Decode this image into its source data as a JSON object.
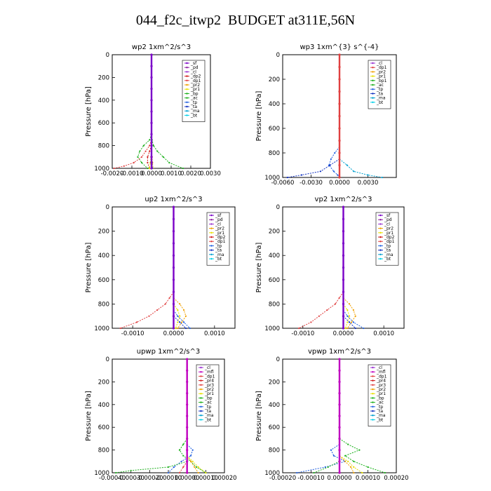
{
  "page_title": "044_f2c_itwp2  BUDGET at311E,56N",
  "colors": {
    "sf": "#7a00c8",
    "pd": "#8b1aa0",
    "cl": "#9a30d0",
    "dp2": "#d01818",
    "dp1": "#e04040",
    "pr2": "#f0a000",
    "pr1": "#e8e000",
    "bp": "#18b018",
    "bp1": "#18b018",
    "dp4": "#c01040",
    "pr4": "#d01818",
    "pr3": "#e04040",
    "mfl": "#c000c0",
    "ac": "#20b020",
    "tp": "#2060e0",
    "ta": "#1030c0",
    "ma": "#00a0d0",
    "bt": "#00d0e8"
  },
  "chart_data": [
    {
      "type": "line",
      "title": "wp2  1xm^2/s^3",
      "ylabel": "Pressure [hPa]",
      "xlim": [
        -0.002,
        0.003
      ],
      "ylim": [
        1000,
        0
      ],
      "xticks": [
        -0.002,
        -0.001,
        0,
        0.001,
        0.002,
        0.003
      ],
      "xtick_labels": [
        "-0.0020",
        "-0.0010",
        "0.0000",
        "0.0010",
        "0.0020",
        "0.0030"
      ],
      "yticks": [
        0,
        200,
        400,
        600,
        800,
        1000
      ],
      "ytick_labels": [
        "0",
        "200",
        "400",
        "600",
        "800",
        "1000"
      ],
      "legend": [
        "_sf",
        "_pd",
        "_cl",
        "_dp2",
        "_dp1",
        "_pr2",
        "_pr1",
        "_bp",
        "_ac",
        "_tp",
        "_ta",
        "_ma",
        "_bt"
      ],
      "legend_keys": [
        "sf",
        "pd",
        "cl",
        "dp2",
        "dp1",
        "pr2",
        "pr1",
        "bp",
        "ac",
        "tp",
        "ta",
        "ma",
        "bt"
      ],
      "legend_position": "top-right",
      "series": [
        {
          "key": "bp",
          "p": [
            700,
            750,
            800,
            850,
            900,
            950,
            1000
          ],
          "x": [
            0,
            3e-05,
            0.0001,
            0.0003,
            0.0006,
            0.0009,
            0.0016
          ]
        },
        {
          "key": "ac",
          "p": [
            700,
            750,
            800,
            850,
            900,
            950,
            1000
          ],
          "x": [
            0,
            -0.0001,
            -0.0004,
            -0.0006,
            -0.0007,
            -0.0005,
            -0.0002
          ]
        },
        {
          "key": "dp1",
          "p": [
            750,
            800,
            850,
            900,
            950,
            980,
            1000
          ],
          "x": [
            0,
            -0.0001,
            -0.0003,
            -0.0005,
            -0.0009,
            -0.0014,
            -0.0019
          ]
        },
        {
          "key": "dp2",
          "p": [
            800,
            850,
            900,
            950,
            1000
          ],
          "x": [
            0,
            -0.0001,
            -0.0002,
            -0.0002,
            -0.0001
          ]
        },
        {
          "key": "pr2",
          "p": [
            850,
            900,
            950,
            1000
          ],
          "x": [
            0,
            3e-05,
            5e-05,
            8e-05
          ]
        },
        {
          "key": "pr1",
          "p": [
            850,
            900,
            950,
            1000
          ],
          "x": [
            0,
            -3e-05,
            -6e-05,
            -0.0001
          ]
        },
        {
          "key": "tp",
          "p": [
            900,
            950,
            1000
          ],
          "x": [
            0,
            3e-05,
            5e-05
          ]
        },
        {
          "key": "sf",
          "p": [
            0,
            100,
            200,
            300,
            400,
            500,
            600,
            700,
            800,
            900,
            950,
            1000
          ],
          "x": [
            0,
            0,
            0,
            0,
            0,
            0,
            0,
            0,
            0,
            0,
            0,
            0
          ]
        }
      ]
    },
    {
      "type": "line",
      "title": "wp3  1xm^{3} s^{-4}",
      "ylabel": "Pressure [hPa]",
      "xlim": [
        -0.006,
        0.006
      ],
      "ylim": [
        1000,
        0
      ],
      "xticks": [
        -0.006,
        -0.003,
        0,
        0.003
      ],
      "xtick_labels": [
        "-0.0060",
        "-0.0030",
        "0.0000",
        "0.0030"
      ],
      "yticks": [
        0,
        200,
        400,
        600,
        800,
        1000
      ],
      "ytick_labels": [
        "0",
        "200",
        "400",
        "600",
        "800",
        "1000"
      ],
      "legend": [
        "_cl",
        "_dp1",
        "_pr2",
        "_pr1",
        "_bp1",
        "_ac",
        "_tp",
        "_ta",
        "_ma",
        "_bt"
      ],
      "legend_keys": [
        "cl",
        "dp1",
        "pr2",
        "pr1",
        "bp1",
        "ac",
        "tp",
        "ta",
        "ma",
        "bt"
      ],
      "legend_position": "top-right",
      "series": [
        {
          "key": "tp",
          "p": [
            750,
            800,
            850,
            900,
            950,
            980,
            1000
          ],
          "x": [
            0,
            -0.0005,
            -0.0009,
            -0.0011,
            -0.0006,
            -0.0002,
            0
          ]
        },
        {
          "key": "ta",
          "p": [
            850,
            900,
            950,
            980,
            1000
          ],
          "x": [
            0,
            -0.001,
            -0.002,
            -0.004,
            -0.0055
          ]
        },
        {
          "key": "ma",
          "p": [
            850,
            900,
            950,
            980,
            1000
          ],
          "x": [
            0,
            0.0008,
            0.0015,
            0.003,
            0.0045
          ]
        },
        {
          "key": "dp1",
          "p": [
            0,
            100,
            200,
            300,
            400,
            500,
            600,
            700,
            800,
            900,
            1000
          ],
          "x": [
            0,
            0,
            0,
            0,
            0,
            0,
            0,
            0,
            0,
            0,
            0
          ]
        }
      ]
    },
    {
      "type": "line",
      "title": "up2  1xm^2/s^3",
      "ylabel": "Pressure [hPa]",
      "xlim": [
        -0.0015,
        0.0015
      ],
      "ylim": [
        1000,
        0
      ],
      "xticks": [
        -0.001,
        0,
        0.001
      ],
      "xtick_labels": [
        "-0.0010",
        "0.0000",
        "0.0010"
      ],
      "yticks": [
        0,
        200,
        400,
        600,
        800,
        1000
      ],
      "ytick_labels": [
        "0",
        "200",
        "400",
        "600",
        "800",
        "1000"
      ],
      "legend": [
        "_sf",
        "_pd",
        "_cl",
        "_pr2",
        "_pr1",
        "_dp2",
        "_dp1",
        "_tp",
        "_ta",
        "_ma",
        "_bt"
      ],
      "legend_keys": [
        "sf",
        "pd",
        "cl",
        "pr2",
        "pr1",
        "dp2",
        "dp1",
        "tp",
        "ta",
        "ma",
        "bt"
      ],
      "legend_position": "top-right",
      "series": [
        {
          "key": "dp1",
          "p": [
            700,
            750,
            800,
            850,
            900,
            950,
            1000
          ],
          "x": [
            0,
            -0.0001,
            -0.0002,
            -0.0004,
            -0.0006,
            -0.0009,
            -0.0013
          ]
        },
        {
          "key": "pr2",
          "p": [
            750,
            800,
            850,
            900,
            950,
            1000
          ],
          "x": [
            0,
            0.00015,
            0.00025,
            0.0003,
            0.0002,
            0.0001
          ]
        },
        {
          "key": "pr1",
          "p": [
            800,
            850,
            900,
            950,
            1000
          ],
          "x": [
            0,
            0.0001,
            0.00015,
            0.0001,
            5e-05
          ]
        },
        {
          "key": "tp",
          "p": [
            850,
            900,
            950,
            1000
          ],
          "x": [
            0,
            0.0001,
            0.00025,
            0.0004
          ]
        },
        {
          "key": "ta",
          "p": [
            900,
            950,
            1000
          ],
          "x": [
            0,
            0.00015,
            0.0003
          ]
        },
        {
          "key": "sf",
          "p": [
            0,
            100,
            200,
            300,
            400,
            500,
            600,
            700,
            800,
            900,
            1000
          ],
          "x": [
            0,
            0,
            0,
            0,
            0,
            0,
            0,
            0,
            0,
            0,
            0
          ]
        }
      ]
    },
    {
      "type": "line",
      "title": "vp2  1xm^2/s^3",
      "ylabel": "Pressure [hPa]",
      "xlim": [
        -0.0015,
        0.0015
      ],
      "ylim": [
        1000,
        0
      ],
      "xticks": [
        -0.001,
        0,
        0.001
      ],
      "xtick_labels": [
        "-0.0010",
        "0.0000",
        "0.0010"
      ],
      "yticks": [
        0,
        200,
        400,
        600,
        800,
        1000
      ],
      "ytick_labels": [
        "0",
        "200",
        "400",
        "600",
        "800",
        "1000"
      ],
      "legend": [
        "_sf",
        "_pd",
        "_cl",
        "_pr2",
        "_pr1",
        "_dp2",
        "_dp1",
        "_tp",
        "_ta",
        "_ma",
        "_bt"
      ],
      "legend_keys": [
        "sf",
        "pd",
        "cl",
        "pr2",
        "pr1",
        "dp2",
        "dp1",
        "tp",
        "ta",
        "ma",
        "bt"
      ],
      "legend_position": "top-right",
      "series": [
        {
          "key": "dp1",
          "p": [
            700,
            750,
            800,
            850,
            900,
            950,
            1000
          ],
          "x": [
            0,
            -0.0001,
            -0.0002,
            -0.0004,
            -0.0006,
            -0.0008,
            -0.0011
          ]
        },
        {
          "key": "pr2",
          "p": [
            750,
            800,
            850,
            900,
            950,
            1000
          ],
          "x": [
            0,
            0.00015,
            0.00025,
            0.0003,
            0.0002,
            0.0001
          ]
        },
        {
          "key": "pr1",
          "p": [
            800,
            850,
            900,
            950,
            1000
          ],
          "x": [
            0,
            0.0001,
            0.00015,
            0.0001,
            5e-05
          ]
        },
        {
          "key": "tp",
          "p": [
            850,
            900,
            950,
            1000
          ],
          "x": [
            0,
            0.0001,
            0.00025,
            0.0005
          ]
        },
        {
          "key": "ta",
          "p": [
            900,
            950,
            1000
          ],
          "x": [
            0,
            0.00015,
            0.0003
          ]
        },
        {
          "key": "sf",
          "p": [
            0,
            100,
            200,
            300,
            400,
            500,
            600,
            700,
            800,
            900,
            1000
          ],
          "x": [
            0,
            0,
            0,
            0,
            0,
            0,
            0,
            0,
            0,
            0,
            0
          ]
        }
      ]
    },
    {
      "type": "line",
      "title": "upwp  1xm^2/s^3",
      "ylabel": "Pressure [hPa]",
      "xlim": [
        -0.0004,
        0.0002
      ],
      "ylim": [
        1000,
        0
      ],
      "xticks": [
        -0.0004,
        -0.0003,
        -0.0002,
        -0.0001,
        0,
        0.0001,
        0.0002
      ],
      "xtick_labels": [
        "-0.00040",
        "-0.00030",
        "-0.00020",
        "-0.00010",
        "0.00000",
        "0.00010",
        "0.00020"
      ],
      "yticks": [
        0,
        200,
        400,
        600,
        800,
        1000
      ],
      "ytick_labels": [
        "0",
        "200",
        "400",
        "600",
        "800",
        "1000"
      ],
      "legend": [
        "_cl",
        "_mfl",
        "_dp1",
        "_pr4",
        "_pr3",
        "_pr2",
        "_pr1",
        "_bp",
        "_ac",
        "_tp",
        "_ta",
        "_ma",
        "_bt"
      ],
      "legend_keys": [
        "cl",
        "mfl",
        "dp1",
        "pr4",
        "pr3",
        "pr2",
        "pr1",
        "bp",
        "ac",
        "tp",
        "ta",
        "ma",
        "bt"
      ],
      "legend_position": "top-right",
      "series": [
        {
          "key": "bp",
          "p": [
            700,
            750,
            800,
            850,
            900,
            950,
            1000
          ],
          "x": [
            0,
            -2e-05,
            -4e-05,
            -2e-05,
            2e-05,
            5e-05,
            0.0001
          ]
        },
        {
          "key": "tp",
          "p": [
            750,
            800,
            850,
            900,
            950,
            1000
          ],
          "x": [
            0,
            3e-05,
            2e-05,
            -3e-05,
            -7e-05,
            -0.0001
          ]
        },
        {
          "key": "pr2",
          "p": [
            850,
            900,
            950,
            1000
          ],
          "x": [
            0,
            2e-05,
            4e-05,
            6e-05
          ]
        },
        {
          "key": "pr1",
          "p": [
            850,
            900,
            950,
            1000
          ],
          "x": [
            0,
            3e-05,
            6e-05,
            0.0001
          ]
        },
        {
          "key": "ac",
          "p": [
            900,
            950,
            980,
            1000
          ],
          "x": [
            0,
            -0.0001,
            -0.0003,
            -0.00038
          ]
        },
        {
          "key": "dp1",
          "p": [
            900,
            950,
            1000
          ],
          "x": [
            0,
            -2e-05,
            -4e-05
          ]
        },
        {
          "key": "mfl",
          "p": [
            0,
            100,
            200,
            300,
            400,
            500,
            600,
            700,
            800,
            900,
            1000
          ],
          "x": [
            0,
            0,
            0,
            0,
            0,
            0,
            0,
            0,
            0,
            0,
            0
          ]
        }
      ]
    },
    {
      "type": "line",
      "title": "vpwp  1xm^2/s^3",
      "ylabel": "Pressure [hPa]",
      "xlim": [
        -0.0002,
        0.0002
      ],
      "ylim": [
        1000,
        0
      ],
      "xticks": [
        -0.0002,
        -0.0001,
        0,
        0.0001,
        0.0002
      ],
      "xtick_labels": [
        "-0.00020",
        "-0.00010",
        "0.00000",
        "0.00010",
        "0.00020"
      ],
      "yticks": [
        0,
        200,
        400,
        600,
        800,
        1000
      ],
      "ytick_labels": [
        "0",
        "200",
        "400",
        "600",
        "800",
        "1000"
      ],
      "legend": [
        "_cl",
        "_mfl",
        "_dp1",
        "_pr4",
        "_pr3",
        "_pr2",
        "_pr1",
        "_bp",
        "_ac",
        "_tp",
        "_ta",
        "_ma",
        "_bt"
      ],
      "legend_keys": [
        "cl",
        "mfl",
        "dp1",
        "pr4",
        "pr3",
        "pr2",
        "pr1",
        "bp",
        "ac",
        "tp",
        "ta",
        "ma",
        "bt"
      ],
      "legend_position": "top-right",
      "series": [
        {
          "key": "bp",
          "p": [
            700,
            750,
            800,
            850,
            900,
            950,
            1000
          ],
          "x": [
            0,
            3e-05,
            7e-05,
            2e-05,
            5e-05,
            0.0001,
            0.00016
          ]
        },
        {
          "key": "tp",
          "p": [
            750,
            800,
            850,
            900,
            950,
            1000
          ],
          "x": [
            0,
            -3e-05,
            -2e-05,
            2e-05,
            -5e-05,
            -0.00015
          ]
        },
        {
          "key": "pr2",
          "p": [
            850,
            900,
            950,
            1000
          ],
          "x": [
            0,
            2e-05,
            4e-05,
            5e-05
          ]
        },
        {
          "key": "pr1",
          "p": [
            850,
            900,
            950,
            1000
          ],
          "x": [
            0,
            3e-05,
            5e-05,
            8e-05
          ]
        },
        {
          "key": "ac",
          "p": [
            900,
            950,
            1000
          ],
          "x": [
            0,
            -4e-05,
            -9e-05
          ]
        },
        {
          "key": "mfl",
          "p": [
            0,
            100,
            200,
            300,
            400,
            500,
            600,
            700,
            800,
            900,
            1000
          ],
          "x": [
            0,
            0,
            0,
            0,
            0,
            0,
            0,
            0,
            0,
            0,
            0
          ]
        }
      ]
    }
  ]
}
